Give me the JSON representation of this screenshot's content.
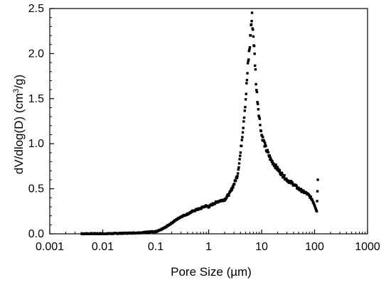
{
  "chart_data": {
    "type": "scatter",
    "xlabel": "Pore Size (µm)",
    "ylabel": "dV/dlog(D) (cm3/g)",
    "ylabel_parts": {
      "before": "dV/dlog(D) (cm",
      "sup": "3",
      "after": "/g)"
    },
    "x_scale": "log",
    "xlim": [
      0.001,
      1000
    ],
    "ylim": [
      0,
      2.5
    ],
    "x_ticks": [
      0.001,
      0.01,
      0.1,
      1,
      10,
      100,
      1000
    ],
    "x_tick_labels": [
      "0.001",
      "0.01",
      "0.1",
      "1",
      "10",
      "100",
      "1000"
    ],
    "y_ticks": [
      0,
      0.5,
      1,
      1.5,
      2,
      2.5
    ],
    "y_tick_labels": [
      "0.0",
      "0.5",
      "1.0",
      "1.5",
      "2.0",
      "2.5"
    ],
    "grid": false,
    "marker": "square",
    "color": "#000000",
    "series": [
      {
        "points": [
          [
            0.004,
            0.0
          ],
          [
            0.006,
            0.0
          ],
          [
            0.01,
            0.0
          ],
          [
            0.02,
            0.005
          ],
          [
            0.04,
            0.01
          ],
          [
            0.06,
            0.015
          ],
          [
            0.08,
            0.025
          ],
          [
            0.1,
            0.02
          ],
          [
            0.12,
            0.04
          ],
          [
            0.15,
            0.07
          ],
          [
            0.2,
            0.12
          ],
          [
            0.25,
            0.16
          ],
          [
            0.3,
            0.19
          ],
          [
            0.4,
            0.22
          ],
          [
            0.5,
            0.25
          ],
          [
            0.6,
            0.27
          ],
          [
            0.7,
            0.28
          ],
          [
            0.8,
            0.3
          ],
          [
            0.9,
            0.31
          ],
          [
            1.0,
            0.3
          ],
          [
            1.2,
            0.33
          ],
          [
            1.5,
            0.36
          ],
          [
            2.0,
            0.38
          ],
          [
            2.5,
            0.45
          ],
          [
            3.0,
            0.55
          ],
          [
            3.5,
            0.65
          ],
          [
            4.0,
            0.9
          ],
          [
            4.5,
            1.2
          ],
          [
            5.0,
            1.5
          ],
          [
            5.5,
            1.85
          ],
          [
            6.0,
            2.1
          ],
          [
            6.3,
            2.3
          ],
          [
            6.6,
            2.4
          ],
          [
            7.0,
            2.2
          ],
          [
            7.5,
            1.9
          ],
          [
            8.0,
            1.6
          ],
          [
            9.0,
            1.3
          ],
          [
            10.0,
            1.1
          ],
          [
            12.0,
            0.95
          ],
          [
            15.0,
            0.82
          ],
          [
            20.0,
            0.72
          ],
          [
            25.0,
            0.65
          ],
          [
            30.0,
            0.6
          ],
          [
            40.0,
            0.55
          ],
          [
            50.0,
            0.5
          ],
          [
            60.0,
            0.47
          ],
          [
            70.0,
            0.45
          ],
          [
            80.0,
            0.42
          ],
          [
            90.0,
            0.38
          ],
          [
            100.0,
            0.32
          ],
          [
            110.0,
            0.25
          ],
          [
            115.0,
            0.6
          ]
        ]
      }
    ]
  }
}
